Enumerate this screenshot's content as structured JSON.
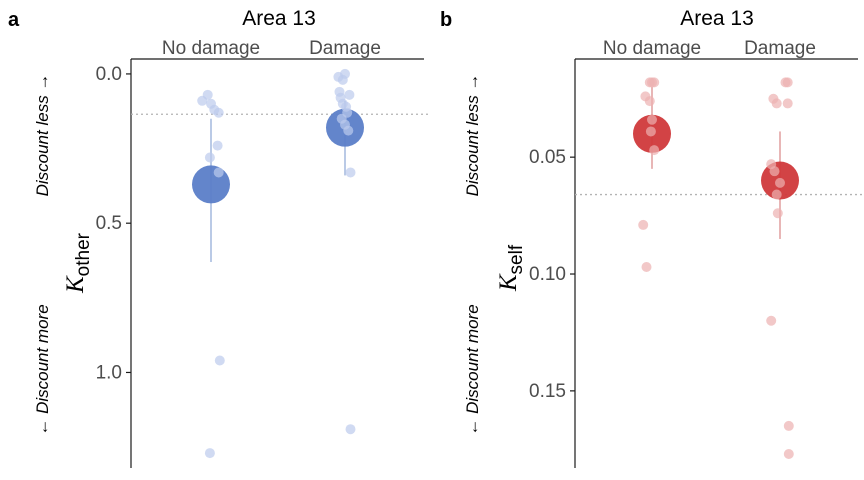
{
  "chart_data": [
    {
      "type": "scatter",
      "panel_label": "a",
      "title": "Area 13",
      "categories": [
        "No damage",
        "Damage"
      ],
      "ylabel_main": "K",
      "ylabel_sub": "other",
      "side_top": "Discount less →",
      "side_bottom": "← Discount more",
      "y_reversed": true,
      "ylim": [
        -0.05,
        1.32
      ],
      "yticks": [
        0.0,
        0.5,
        1.0
      ],
      "ytick_labels": [
        "0.0",
        "0.5",
        "1.0"
      ],
      "reference_line": 0.135,
      "series": [
        {
          "category": "No damage",
          "mean": 0.37,
          "error": [
            0.15,
            0.63
          ],
          "points": [
            {
              "dx": -0.03,
              "y": 0.07
            },
            {
              "dx": -0.08,
              "y": 0.09
            },
            {
              "dx": 0.0,
              "y": 0.1
            },
            {
              "dx": 0.03,
              "y": 0.12
            },
            {
              "dx": 0.07,
              "y": 0.13
            },
            {
              "dx": 0.06,
              "y": 0.24
            },
            {
              "dx": -0.01,
              "y": 0.28
            },
            {
              "dx": 0.07,
              "y": 0.33
            },
            {
              "dx": 0.08,
              "y": 0.96
            },
            {
              "dx": -0.01,
              "y": 1.27
            }
          ]
        },
        {
          "category": "Damage",
          "mean": 0.18,
          "error": [
            0.09,
            0.34
          ],
          "points": [
            {
              "dx": -0.06,
              "y": 0.01
            },
            {
              "dx": -0.02,
              "y": 0.02
            },
            {
              "dx": 0.0,
              "y": 0.0
            },
            {
              "dx": -0.05,
              "y": 0.06
            },
            {
              "dx": -0.04,
              "y": 0.08
            },
            {
              "dx": 0.04,
              "y": 0.07
            },
            {
              "dx": -0.02,
              "y": 0.1
            },
            {
              "dx": 0.01,
              "y": 0.11
            },
            {
              "dx": 0.02,
              "y": 0.13
            },
            {
              "dx": -0.03,
              "y": 0.15
            },
            {
              "dx": 0.0,
              "y": 0.17
            },
            {
              "dx": 0.03,
              "y": 0.19
            },
            {
              "dx": 0.05,
              "y": 0.33
            },
            {
              "dx": 0.05,
              "y": 1.19
            }
          ]
        }
      ],
      "point_color": "#bccbec",
      "mean_color": "#5b7ec8",
      "error_color": "#a9bde0"
    },
    {
      "type": "scatter",
      "panel_label": "b",
      "title": "Area 13",
      "categories": [
        "No damage",
        "Damage"
      ],
      "ylabel_main": "K",
      "ylabel_sub": "self",
      "side_top": "Discount less →",
      "side_bottom": "← Discount more",
      "y_reversed": true,
      "ylim": [
        0.008,
        0.183
      ],
      "yticks": [
        0.05,
        0.1,
        0.15
      ],
      "ytick_labels": [
        "0.05",
        "0.10",
        "0.15"
      ],
      "reference_line": 0.066,
      "series": [
        {
          "category": "No damage",
          "mean": 0.04,
          "error": [
            0.02,
            0.055
          ],
          "points": [
            {
              "dx": -0.02,
              "y": 0.018
            },
            {
              "dx": 0.02,
              "y": 0.018
            },
            {
              "dx": 0.0,
              "y": 0.018
            },
            {
              "dx": -0.06,
              "y": 0.024
            },
            {
              "dx": -0.02,
              "y": 0.026
            },
            {
              "dx": 0.0,
              "y": 0.034
            },
            {
              "dx": -0.01,
              "y": 0.039
            },
            {
              "dx": 0.02,
              "y": 0.047
            },
            {
              "dx": -0.08,
              "y": 0.079
            },
            {
              "dx": -0.05,
              "y": 0.097
            }
          ]
        },
        {
          "category": "Damage",
          "mean": 0.06,
          "error": [
            0.039,
            0.085
          ],
          "points": [
            {
              "dx": 0.05,
              "y": 0.018
            },
            {
              "dx": 0.07,
              "y": 0.018
            },
            {
              "dx": -0.06,
              "y": 0.025
            },
            {
              "dx": -0.03,
              "y": 0.027
            },
            {
              "dx": 0.07,
              "y": 0.027
            },
            {
              "dx": -0.08,
              "y": 0.053
            },
            {
              "dx": -0.05,
              "y": 0.056
            },
            {
              "dx": 0.0,
              "y": 0.061
            },
            {
              "dx": -0.03,
              "y": 0.066
            },
            {
              "dx": -0.02,
              "y": 0.074
            },
            {
              "dx": -0.08,
              "y": 0.12
            },
            {
              "dx": 0.08,
              "y": 0.165
            },
            {
              "dx": 0.08,
              "y": 0.177
            }
          ]
        }
      ],
      "point_color": "#ecb0b0",
      "mean_color": "#d0393b",
      "error_color": "#e3a3a3"
    }
  ]
}
